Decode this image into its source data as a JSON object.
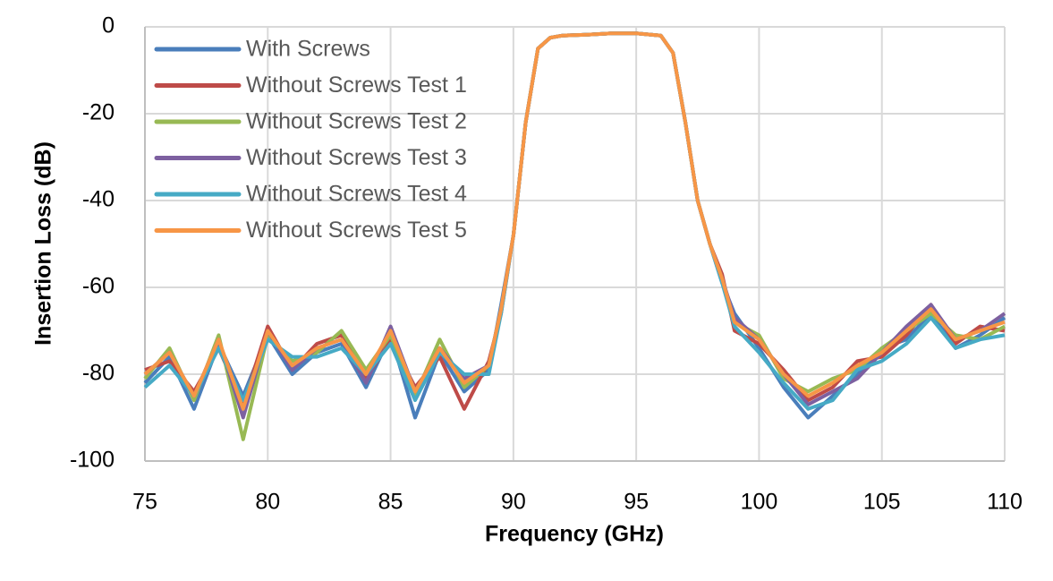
{
  "chart_data": {
    "type": "line",
    "x_label": "Frequency (GHz)",
    "y_label": "Insertion Loss (dB)",
    "x": [
      75,
      76,
      77,
      78,
      79,
      80,
      81,
      82,
      83,
      84,
      85,
      86,
      87,
      88,
      89,
      89.5,
      90,
      90.5,
      91,
      91.5,
      92,
      93,
      94,
      95,
      96,
      96.5,
      97,
      97.5,
      98,
      98.5,
      99,
      100,
      101,
      102,
      103,
      104,
      105,
      106,
      107,
      108,
      109,
      110
    ],
    "series": [
      {
        "name": "With Screws",
        "color": "#4a7ebb",
        "values": [
          -82,
          -76,
          -88,
          -73,
          -85,
          -71,
          -80,
          -75,
          -73,
          -83,
          -71,
          -90,
          -75,
          -84,
          -79,
          -64,
          -48,
          -22,
          -5,
          -2.5,
          -2,
          -1.8,
          -1.5,
          -1.5,
          -2,
          -6,
          -22,
          -40,
          -50,
          -59,
          -66,
          -74,
          -83,
          -90,
          -85,
          -80,
          -74,
          -72,
          -66,
          -74,
          -71,
          -67
        ]
      },
      {
        "name": "Without Screws Test 1",
        "color": "#be4b48",
        "values": [
          -79,
          -77,
          -84,
          -74,
          -87,
          -69,
          -79,
          -73,
          -71,
          -81,
          -72,
          -83,
          -76,
          -88,
          -77,
          -66,
          -48,
          -22,
          -5,
          -2.5,
          -2,
          -1.8,
          -1.5,
          -1.5,
          -2,
          -6,
          -22,
          -40,
          -50,
          -57,
          -70,
          -73,
          -79,
          -86,
          -83,
          -77,
          -76,
          -71,
          -64,
          -73,
          -69,
          -70
        ]
      },
      {
        "name": "Without Screws Test 2",
        "color": "#98b954",
        "values": [
          -81,
          -74,
          -86,
          -71,
          -95,
          -71,
          -77,
          -75,
          -70,
          -79,
          -71,
          -85,
          -72,
          -83,
          -78,
          -65,
          -48,
          -22,
          -5,
          -2.5,
          -2,
          -1.8,
          -1.5,
          -1.5,
          -2,
          -6,
          -22,
          -40,
          -50,
          -58,
          -68,
          -71,
          -81,
          -84,
          -81,
          -79,
          -74,
          -70,
          -66,
          -71,
          -72,
          -69
        ]
      },
      {
        "name": "Without Screws Test 3",
        "color": "#7d60a0",
        "values": [
          -80,
          -75,
          -85,
          -72,
          -90,
          -70,
          -79,
          -74,
          -72,
          -82,
          -69,
          -84,
          -74,
          -81,
          -78,
          -65,
          -48,
          -22,
          -5,
          -2.5,
          -2,
          -1.8,
          -1.5,
          -1.5,
          -2,
          -6,
          -22,
          -40,
          -50,
          -58,
          -67,
          -72,
          -80,
          -87,
          -84,
          -81,
          -75,
          -69,
          -64,
          -72,
          -70,
          -66
        ]
      },
      {
        "name": "Without Screws Test 4",
        "color": "#46aac5",
        "values": [
          -83,
          -78,
          -85,
          -74,
          -86,
          -72,
          -76,
          -76,
          -74,
          -80,
          -73,
          -86,
          -75,
          -80,
          -80,
          -66,
          -48,
          -22,
          -5,
          -2.5,
          -2,
          -1.8,
          -1.5,
          -1.5,
          -2,
          -6,
          -22,
          -40,
          -50,
          -59,
          -69,
          -75,
          -82,
          -88,
          -86,
          -79,
          -77,
          -73,
          -67,
          -74,
          -72,
          -71
        ]
      },
      {
        "name": "Without Screws Test 5",
        "color": "#f79646",
        "values": [
          -80,
          -75,
          -85,
          -72,
          -88,
          -70,
          -78,
          -74,
          -72,
          -80,
          -70,
          -84,
          -74,
          -82,
          -78,
          -65,
          -48,
          -22,
          -5,
          -2.5,
          -2,
          -1.8,
          -1.5,
          -1.5,
          -2,
          -6,
          -22,
          -40,
          -50,
          -58,
          -68,
          -72,
          -80,
          -85,
          -82,
          -78,
          -75,
          -70,
          -65,
          -72,
          -70,
          -68
        ]
      }
    ],
    "xlim": [
      75,
      110
    ],
    "xticks": [
      75,
      80,
      85,
      90,
      95,
      100,
      105,
      110
    ],
    "ylim": [
      -100,
      0
    ],
    "yticks": [
      0,
      -20,
      -40,
      -60,
      -80,
      -100
    ],
    "grid": true,
    "legend": "top-left"
  }
}
